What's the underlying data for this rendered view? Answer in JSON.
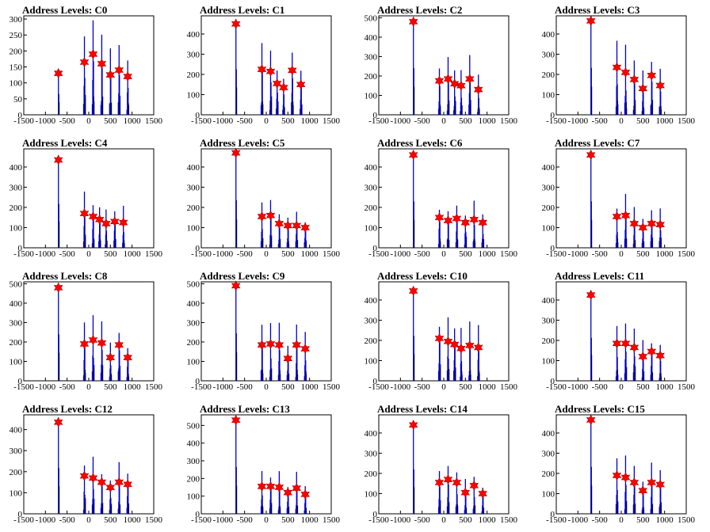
{
  "colors": {
    "histogram": "#0000cc",
    "marker": "#ff0000",
    "axis": "#000000"
  },
  "chart_data": [
    {
      "type": "bar",
      "title": "Address Levels: C0",
      "xlim": [
        -1500,
        1500
      ],
      "ylim": [
        0,
        310
      ],
      "yticks": [
        0,
        50,
        100,
        150,
        200,
        250,
        300
      ],
      "xticks": [
        -1500,
        -1000,
        -500,
        0,
        500,
        1000,
        1500
      ],
      "x": [
        -700,
        -100,
        100,
        300,
        500,
        700,
        900
      ],
      "values": [
        130,
        165,
        190,
        160,
        125,
        140,
        120
      ]
    },
    {
      "type": "bar",
      "title": "Address Levels: C1",
      "xlim": [
        -1500,
        1500
      ],
      "ylim": [
        0,
        490
      ],
      "yticks": [
        0,
        100,
        200,
        300,
        400
      ],
      "xticks": [
        -1500,
        -1000,
        -500,
        0,
        500,
        1000,
        1500
      ],
      "x": [
        -700,
        -100,
        100,
        250,
        400,
        600,
        800
      ],
      "values": [
        450,
        225,
        215,
        155,
        135,
        220,
        150
      ]
    },
    {
      "type": "bar",
      "title": "Address Levels: C2",
      "xlim": [
        -1500,
        1500
      ],
      "ylim": [
        0,
        510
      ],
      "yticks": [
        0,
        100,
        200,
        300,
        400,
        500
      ],
      "xticks": [
        -1500,
        -1000,
        -500,
        0,
        500,
        1000,
        1500
      ],
      "x": [
        -700,
        -100,
        100,
        250,
        400,
        600,
        800
      ],
      "values": [
        480,
        175,
        185,
        160,
        150,
        185,
        130
      ]
    },
    {
      "type": "bar",
      "title": "Address Levels: C3",
      "xlim": [
        -1500,
        1500
      ],
      "ylim": [
        0,
        490
      ],
      "yticks": [
        0,
        100,
        200,
        300,
        400
      ],
      "xticks": [
        -1500,
        -1000,
        -500,
        0,
        500,
        1000,
        1500
      ],
      "x": [
        -700,
        -100,
        100,
        300,
        500,
        700,
        900
      ],
      "values": [
        465,
        235,
        210,
        175,
        130,
        195,
        145
      ]
    },
    {
      "type": "bar",
      "title": "Address Levels: C4",
      "xlim": [
        -1500,
        1500
      ],
      "ylim": [
        0,
        490
      ],
      "yticks": [
        0,
        100,
        200,
        300,
        400
      ],
      "xticks": [
        -1500,
        -1000,
        -500,
        0,
        500,
        1000,
        1500
      ],
      "x": [
        -700,
        -100,
        100,
        250,
        400,
        600,
        800
      ],
      "values": [
        435,
        170,
        155,
        140,
        120,
        130,
        125
      ]
    },
    {
      "type": "bar",
      "title": "Address Levels: C5",
      "xlim": [
        -1500,
        1500
      ],
      "ylim": [
        0,
        490
      ],
      "yticks": [
        0,
        100,
        200,
        300,
        400
      ],
      "xticks": [
        -1500,
        -1000,
        -500,
        0,
        500,
        1000,
        1500
      ],
      "x": [
        -700,
        -100,
        100,
        300,
        500,
        700,
        900
      ],
      "values": [
        470,
        155,
        160,
        120,
        110,
        110,
        100
      ]
    },
    {
      "type": "bar",
      "title": "Address Levels: C6",
      "xlim": [
        -1500,
        1500
      ],
      "ylim": [
        0,
        490
      ],
      "yticks": [
        0,
        100,
        200,
        300,
        400
      ],
      "xticks": [
        -1500,
        -1000,
        -500,
        0,
        500,
        1000,
        1500
      ],
      "x": [
        -700,
        -100,
        100,
        300,
        500,
        700,
        900
      ],
      "values": [
        460,
        150,
        135,
        145,
        125,
        140,
        125
      ]
    },
    {
      "type": "bar",
      "title": "Address Levels: C7",
      "xlim": [
        -1500,
        1500
      ],
      "ylim": [
        0,
        490
      ],
      "yticks": [
        0,
        100,
        200,
        300,
        400
      ],
      "xticks": [
        -1500,
        -1000,
        -500,
        0,
        500,
        1000,
        1500
      ],
      "x": [
        -700,
        -100,
        100,
        300,
        500,
        700,
        900
      ],
      "values": [
        460,
        155,
        160,
        120,
        100,
        120,
        115
      ]
    },
    {
      "type": "bar",
      "title": "Address Levels: C8",
      "xlim": [
        -1500,
        1500
      ],
      "ylim": [
        0,
        510
      ],
      "yticks": [
        0,
        100,
        200,
        300,
        400,
        500
      ],
      "xticks": [
        -1500,
        -1000,
        -500,
        0,
        500,
        1000,
        1500
      ],
      "x": [
        -700,
        -100,
        100,
        300,
        500,
        700,
        900
      ],
      "values": [
        480,
        190,
        210,
        195,
        120,
        185,
        120
      ]
    },
    {
      "type": "bar",
      "title": "Address Levels: C9",
      "xlim": [
        -1500,
        1500
      ],
      "ylim": [
        0,
        510
      ],
      "yticks": [
        0,
        100,
        200,
        300,
        400,
        500
      ],
      "xticks": [
        -1500,
        -1000,
        -500,
        0,
        500,
        1000,
        1500
      ],
      "x": [
        -700,
        -100,
        100,
        300,
        500,
        700,
        900
      ],
      "values": [
        490,
        185,
        190,
        185,
        115,
        185,
        165
      ]
    },
    {
      "type": "bar",
      "title": "Address Levels: C10",
      "xlim": [
        -1500,
        1500
      ],
      "ylim": [
        0,
        490
      ],
      "yticks": [
        0,
        100,
        200,
        300,
        400
      ],
      "xticks": [
        -1500,
        -1000,
        -500,
        0,
        500,
        1000,
        1500
      ],
      "x": [
        -700,
        -100,
        100,
        250,
        400,
        600,
        800
      ],
      "values": [
        445,
        210,
        195,
        180,
        160,
        175,
        165
      ]
    },
    {
      "type": "bar",
      "title": "Address Levels: C11",
      "xlim": [
        -1500,
        1500
      ],
      "ylim": [
        0,
        490
      ],
      "yticks": [
        0,
        100,
        200,
        300,
        400
      ],
      "xticks": [
        -1500,
        -1000,
        -500,
        0,
        500,
        1000,
        1500
      ],
      "x": [
        -700,
        -100,
        100,
        300,
        500,
        700,
        900
      ],
      "values": [
        425,
        185,
        185,
        165,
        120,
        145,
        125
      ]
    },
    {
      "type": "bar",
      "title": "Address Levels: C12",
      "xlim": [
        -1500,
        1500
      ],
      "ylim": [
        0,
        470
      ],
      "yticks": [
        0,
        100,
        200,
        300,
        400
      ],
      "xticks": [
        -1500,
        -1000,
        -500,
        0,
        500,
        1000,
        1500
      ],
      "x": [
        -700,
        -100,
        100,
        300,
        500,
        700,
        900
      ],
      "values": [
        435,
        180,
        170,
        150,
        125,
        150,
        140
      ]
    },
    {
      "type": "bar",
      "title": "Address Levels: C13",
      "xlim": [
        -1500,
        1500
      ],
      "ylim": [
        0,
        560
      ],
      "yticks": [
        0,
        100,
        200,
        300,
        400,
        500
      ],
      "xticks": [
        -1500,
        -1000,
        -500,
        0,
        500,
        1000,
        1500
      ],
      "x": [
        -700,
        -100,
        100,
        300,
        500,
        700,
        900
      ],
      "values": [
        530,
        155,
        155,
        150,
        120,
        145,
        110
      ]
    },
    {
      "type": "bar",
      "title": "Address Levels: C14",
      "xlim": [
        -1500,
        1500
      ],
      "ylim": [
        0,
        490
      ],
      "yticks": [
        0,
        100,
        200,
        300,
        400
      ],
      "xticks": [
        -1500,
        -1000,
        -500,
        0,
        500,
        1000,
        1500
      ],
      "x": [
        -700,
        -100,
        100,
        300,
        500,
        700,
        900
      ],
      "values": [
        440,
        155,
        170,
        155,
        105,
        140,
        100
      ]
    },
    {
      "type": "bar",
      "title": "Address Levels: C15",
      "xlim": [
        -1500,
        1500
      ],
      "ylim": [
        0,
        490
      ],
      "yticks": [
        0,
        100,
        200,
        300,
        400
      ],
      "xticks": [
        -1500,
        -1000,
        -500,
        0,
        500,
        1000,
        1500
      ],
      "x": [
        -700,
        -100,
        100,
        300,
        500,
        700,
        900
      ],
      "values": [
        465,
        190,
        180,
        155,
        115,
        155,
        145
      ]
    }
  ]
}
